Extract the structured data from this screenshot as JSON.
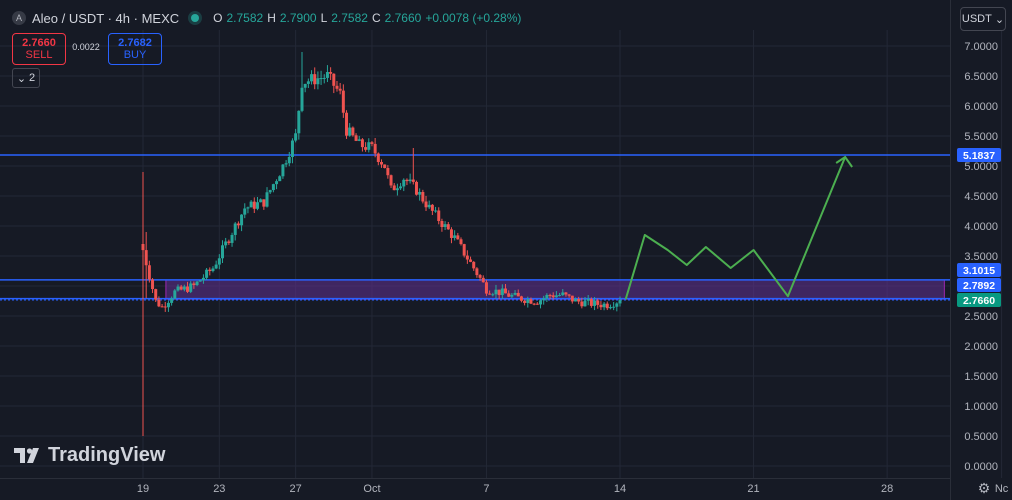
{
  "header": {
    "symbol_initial": "A",
    "title": "Aleo / USDT · 4h · MEXC",
    "ohlc": [
      {
        "k": "O",
        "v": "2.7582"
      },
      {
        "k": "H",
        "v": "2.7900"
      },
      {
        "k": "L",
        "v": "2.7582"
      },
      {
        "k": "C",
        "v": "2.7660"
      }
    ],
    "change": "+0.0078 (+0.28%)"
  },
  "trade": {
    "sell_price": "2.7660",
    "sell_label": "SELL",
    "spread": "0.0022",
    "buy_price": "2.7682",
    "buy_label": "BUY"
  },
  "indicators_count": "2",
  "currency": "USDT",
  "logo_text": "TradingView",
  "colors": {
    "background": "#161a25",
    "grid": "#232836",
    "up": "#26a69a",
    "down": "#ef5350",
    "hline": "#2962ff",
    "zone_fill": "#5b2f8a",
    "projection": "#4caf50",
    "text": "#b2b5be"
  },
  "chart_data": {
    "type": "candlestick",
    "title": "Aleo / USDT · 4h · MEXC",
    "ylim": [
      0,
      7.2
    ],
    "y_ticks": [
      "0.0000",
      "0.5000",
      "1.0000",
      "1.5000",
      "2.0000",
      "2.5000",
      "3.0000",
      "3.5000",
      "4.0000",
      "4.5000",
      "5.0000",
      "5.5000",
      "6.0000",
      "6.5000",
      "7.0000"
    ],
    "x_ticks": [
      "19",
      "23",
      "27",
      "Oct",
      "7",
      "14",
      "21",
      "28",
      "Nc"
    ],
    "x_tick_days": [
      18,
      22,
      26,
      30,
      36,
      43,
      50,
      57,
      63
    ],
    "x_range_days": [
      10.1,
      64.8
    ],
    "bar_hours": 4,
    "candles_start_day": 18,
    "close_path_points": [
      [
        0,
        3.6
      ],
      [
        4,
        2.75
      ],
      [
        6,
        2.65
      ],
      [
        10,
        2.9
      ],
      [
        16,
        3.0
      ],
      [
        22,
        3.3
      ],
      [
        28,
        3.9
      ],
      [
        32,
        4.3
      ],
      [
        38,
        4.4
      ],
      [
        44,
        5.0
      ],
      [
        48,
        5.5
      ],
      [
        50,
        6.4
      ],
      [
        58,
        6.5
      ],
      [
        62,
        6.2
      ],
      [
        64,
        5.6
      ],
      [
        68,
        5.35
      ],
      [
        72,
        5.3
      ],
      [
        76,
        5.0
      ],
      [
        78,
        4.6
      ],
      [
        82,
        4.8
      ],
      [
        86,
        4.6
      ],
      [
        90,
        4.3
      ],
      [
        98,
        3.8
      ],
      [
        104,
        3.3
      ],
      [
        108,
        2.95
      ],
      [
        112,
        2.9
      ],
      [
        118,
        2.8
      ],
      [
        124,
        2.75
      ],
      [
        128,
        2.85
      ],
      [
        132,
        2.85
      ],
      [
        136,
        2.75
      ],
      [
        142,
        2.7
      ],
      [
        146,
        2.69
      ],
      [
        150,
        2.766
      ]
    ],
    "special_wicks": [
      {
        "index": 0,
        "low": 0.5,
        "high": 4.9
      },
      {
        "index": 1,
        "low": 2.8,
        "high": 3.9
      },
      {
        "index": 50,
        "high": 6.9
      },
      {
        "index": 85,
        "high": 5.3
      }
    ],
    "horizontal_levels": [
      {
        "value": 5.1837,
        "label": "5.1837"
      },
      {
        "value": 3.1015,
        "label": "3.1015"
      },
      {
        "value": 2.7892,
        "label": "2.7892"
      },
      {
        "value": 2.766,
        "label": "2.7660"
      }
    ],
    "zone": {
      "from_day": 19.2,
      "to_day": 60.0,
      "low": 2.78,
      "high": 3.1
    },
    "projection": [
      [
        43.3,
        2.78
      ],
      [
        44.3,
        3.85
      ],
      [
        45.5,
        3.6
      ],
      [
        46.5,
        3.35
      ],
      [
        47.5,
        3.65
      ],
      [
        48.8,
        3.3
      ],
      [
        50.0,
        3.6
      ],
      [
        51.8,
        2.83
      ],
      [
        54.8,
        5.15
      ]
    ]
  }
}
